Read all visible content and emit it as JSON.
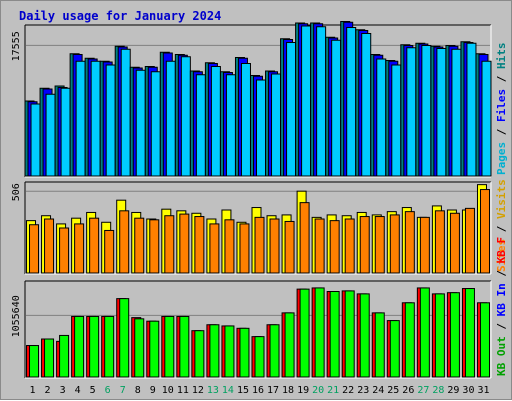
{
  "chart_data": [
    {
      "type": "bar",
      "title": "Daily usage for January 2024",
      "categories": [
        "1",
        "2",
        "3",
        "4",
        "5",
        "6",
        "7",
        "8",
        "9",
        "10",
        "11",
        "12",
        "13",
        "14",
        "15",
        "16",
        "17",
        "18",
        "19",
        "20",
        "21",
        "22",
        "23",
        "24",
        "25",
        "26",
        "27",
        "28",
        "29",
        "30",
        "31"
      ],
      "weekend_days": [
        "6",
        "7",
        "13",
        "14",
        "20",
        "21",
        "27",
        "28"
      ],
      "y_tick_label": "17555",
      "ylim": [
        0,
        20000
      ],
      "series": [
        {
          "name": "Hits",
          "color": "#008080",
          "values": [
            10000,
            11700,
            12000,
            16300,
            15700,
            15300,
            17300,
            14500,
            14600,
            16500,
            16200,
            14000,
            15100,
            13900,
            15800,
            13400,
            14000,
            18300,
            20400,
            20400,
            18500,
            20600,
            19500,
            16200,
            15400,
            17500,
            17700,
            17300,
            17400,
            17900,
            16300
          ]
        },
        {
          "name": "Files",
          "color": "#0000ff",
          "values": [
            9900,
            11600,
            11800,
            16200,
            15600,
            15200,
            17200,
            14400,
            14500,
            16400,
            16100,
            13900,
            15000,
            13800,
            15700,
            13300,
            13900,
            18200,
            20300,
            20300,
            18400,
            20500,
            19400,
            16100,
            15300,
            17400,
            17600,
            17200,
            17300,
            17800,
            16200
          ]
        },
        {
          "name": "Pages",
          "color": "#00ccff",
          "values": [
            9600,
            10900,
            11700,
            15300,
            15300,
            14800,
            16900,
            14100,
            13900,
            15300,
            15900,
            13500,
            14600,
            13500,
            15000,
            12800,
            13600,
            17800,
            20000,
            19900,
            18100,
            19800,
            19000,
            15600,
            14800,
            17100,
            17400,
            17000,
            16900,
            17700,
            15300
          ]
        }
      ]
    },
    {
      "type": "bar",
      "y_tick_label": "506",
      "ylim": [
        0,
        550
      ],
      "series": [
        {
          "name": "Visits",
          "color": "#ffff00",
          "values": [
            320,
            350,
            300,
            335,
            370,
            310,
            445,
            370,
            330,
            390,
            380,
            365,
            330,
            385,
            310,
            400,
            350,
            355,
            500,
            340,
            355,
            350,
            370,
            355,
            375,
            400,
            340,
            410,
            385,
            385,
            540
          ]
        },
        {
          "name": "Sites",
          "color": "#ff8000",
          "values": [
            295,
            330,
            275,
            300,
            335,
            260,
            380,
            335,
            325,
            350,
            360,
            345,
            300,
            325,
            300,
            340,
            330,
            315,
            430,
            330,
            320,
            330,
            345,
            345,
            355,
            375,
            340,
            380,
            365,
            395,
            510
          ]
        }
      ]
    },
    {
      "type": "bar",
      "y_tick_label": "1055640",
      "ylim": [
        0,
        1600000
      ],
      "series": [
        {
          "name": "KB F",
          "color": "#ff0000",
          "values": [
            530000,
            640000,
            600000,
            1020000,
            1020000,
            1020000,
            1320000,
            1000000,
            940000,
            1020000,
            1020000,
            780000,
            880000,
            860000,
            820000,
            680000,
            880000,
            1080000,
            1480000,
            1500000,
            1440000,
            1450000,
            1400000,
            1080000,
            950000,
            1250000,
            1500000,
            1400000,
            1420000,
            1490000,
            1250000
          ]
        },
        {
          "name": "KB In",
          "color": "#0000ff",
          "values": [
            0,
            0,
            0,
            0,
            0,
            0,
            0,
            0,
            0,
            0,
            0,
            0,
            0,
            0,
            0,
            0,
            0,
            0,
            0,
            0,
            0,
            0,
            0,
            0,
            0,
            0,
            0,
            0,
            0,
            0,
            0
          ]
        },
        {
          "name": "KB Out",
          "color": "#00ff00",
          "values": [
            530000,
            640000,
            700000,
            1020000,
            1020000,
            1020000,
            1320000,
            980000,
            940000,
            1020000,
            1020000,
            780000,
            880000,
            860000,
            820000,
            680000,
            880000,
            1080000,
            1480000,
            1500000,
            1440000,
            1450000,
            1400000,
            1080000,
            950000,
            1250000,
            1500000,
            1400000,
            1420000,
            1490000,
            1250000
          ]
        }
      ]
    }
  ]
}
